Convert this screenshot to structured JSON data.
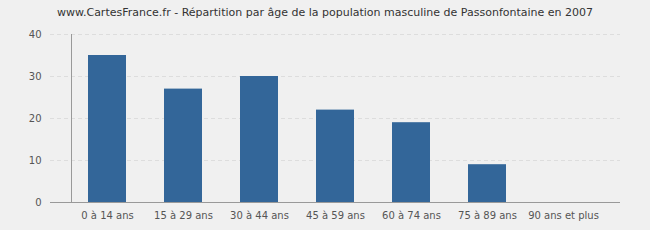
{
  "chart_data": {
    "type": "bar",
    "title": "www.CartesFrance.fr - Répartition par âge de la population masculine de Passonfontaine en 2007",
    "categories": [
      "0 à 14 ans",
      "15 à 29 ans",
      "30 à 44 ans",
      "45 à 59 ans",
      "60 à 74 ans",
      "75 à 89 ans",
      "90 ans et plus"
    ],
    "values": [
      35,
      27,
      30,
      22,
      19,
      9,
      0
    ],
    "color": "#336699",
    "ylim": [
      0,
      40
    ],
    "yticks": [
      0,
      10,
      20,
      30,
      40
    ],
    "grid": true
  }
}
